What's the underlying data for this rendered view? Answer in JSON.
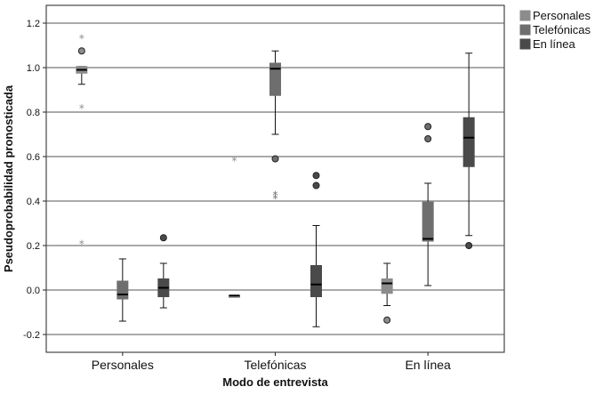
{
  "chart_data": {
    "type": "boxplot",
    "xlabel": "Modo de entrevista",
    "ylabel": "Pseudoprobabilidad pronosticada",
    "ylim": [
      -0.28,
      1.28
    ],
    "yticks": [
      -0.2,
      0.0,
      0.2,
      0.4,
      0.6,
      0.8,
      1.0,
      1.2
    ],
    "ytick_labels": [
      "-0.2",
      "0.0",
      "0.2",
      "0.4",
      "0.6",
      "0.8",
      "1.0",
      "1.2"
    ],
    "grid": true,
    "legend_position": "top-right",
    "categories": [
      "Personales",
      "Telefónicas",
      "En línea"
    ],
    "series": [
      {
        "name": "Personales",
        "color": "#8c8c8c",
        "boxes": [
          {
            "min": 0.925,
            "q1": 0.975,
            "median": 0.99,
            "q3": 1.005,
            "max": 1.005,
            "outliers": [
              {
                "y": 1.075,
                "marker": "circle"
              }
            ],
            "extremes": [
              1.135,
              0.82,
              0.21
            ]
          },
          {
            "min": -0.025,
            "q1": -0.025,
            "median": -0.025,
            "q3": -0.025,
            "max": -0.025,
            "outliers": [],
            "extremes": [
              0.585
            ]
          },
          {
            "min": -0.07,
            "q1": -0.015,
            "median": 0.03,
            "q3": 0.05,
            "max": 0.12,
            "outliers": [
              {
                "y": -0.135,
                "marker": "circle"
              }
            ],
            "extremes": []
          }
        ]
      },
      {
        "name": "Telefónicas",
        "color": "#6e6e6e",
        "boxes": [
          {
            "min": -0.14,
            "q1": -0.04,
            "median": -0.02,
            "q3": 0.04,
            "max": 0.14,
            "outliers": [],
            "extremes": []
          },
          {
            "min": 0.7,
            "q1": 0.875,
            "median": 0.995,
            "q3": 1.02,
            "max": 1.075,
            "outliers": [
              {
                "y": 0.59,
                "marker": "circle"
              }
            ],
            "extremes": [
              0.43,
              0.415
            ]
          },
          {
            "min": 0.02,
            "q1": 0.22,
            "median": 0.23,
            "q3": 0.395,
            "max": 0.48,
            "outliers": [
              {
                "y": 0.735,
                "marker": "circle"
              },
              {
                "y": 0.68,
                "marker": "circle"
              }
            ],
            "extremes": []
          }
        ]
      },
      {
        "name": "En línea",
        "color": "#4a4a4a",
        "boxes": [
          {
            "min": -0.08,
            "q1": -0.03,
            "median": 0.01,
            "q3": 0.05,
            "max": 0.12,
            "outliers": [
              {
                "y": 0.235,
                "marker": "circle"
              }
            ],
            "extremes": []
          },
          {
            "min": -0.165,
            "q1": -0.03,
            "median": 0.025,
            "q3": 0.11,
            "max": 0.29,
            "outliers": [
              {
                "y": 0.515,
                "marker": "circle"
              },
              {
                "y": 0.47,
                "marker": "circle"
              }
            ],
            "extremes": []
          },
          {
            "min": 0.245,
            "q1": 0.555,
            "median": 0.685,
            "q3": 0.775,
            "max": 1.065,
            "outliers": [
              {
                "y": 0.2,
                "marker": "circle"
              }
            ],
            "extremes": []
          }
        ]
      }
    ]
  }
}
